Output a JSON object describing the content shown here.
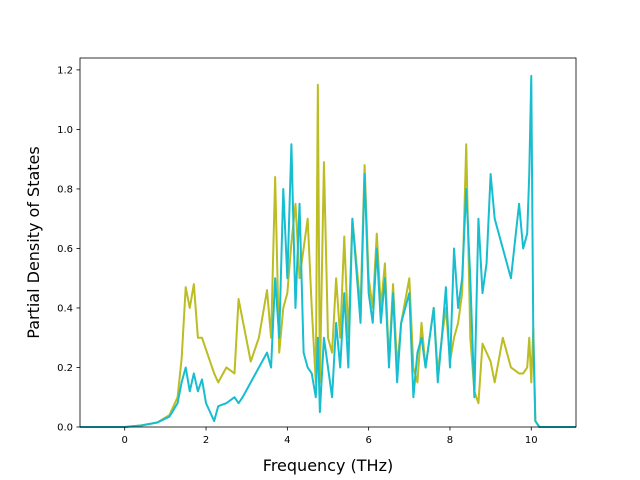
{
  "chart_data": {
    "type": "line",
    "xlabel": "Frequency (THz)",
    "ylabel": "Partial Density of States",
    "xlim": [
      -1.1,
      11.1
    ],
    "ylim": [
      0,
      1.24
    ],
    "grid": false,
    "legend": "none",
    "x_ticks": [
      0,
      2,
      4,
      6,
      8,
      10
    ],
    "x_tick_labels": [
      "0",
      "2",
      "4",
      "6",
      "8",
      "10"
    ],
    "y_ticks": [
      0.0,
      0.2,
      0.4,
      0.6,
      0.8,
      1.0,
      1.2
    ],
    "y_tick_labels": [
      "0.0",
      "0.2",
      "0.4",
      "0.6",
      "0.8",
      "1.0",
      "1.2"
    ],
    "series": [
      {
        "color": "#bcbd22",
        "x": [
          -1.1,
          0.0,
          0.4,
          0.8,
          1.1,
          1.3,
          1.4,
          1.5,
          1.6,
          1.7,
          1.8,
          1.9,
          2.0,
          2.1,
          2.2,
          2.3,
          2.5,
          2.7,
          2.8,
          2.9,
          3.1,
          3.3,
          3.5,
          3.6,
          3.7,
          3.8,
          3.9,
          4.0,
          4.1,
          4.2,
          4.3,
          4.4,
          4.5,
          4.6,
          4.7,
          4.75,
          4.8,
          4.9,
          5.0,
          5.1,
          5.2,
          5.3,
          5.4,
          5.5,
          5.6,
          5.8,
          5.9,
          6.0,
          6.1,
          6.2,
          6.3,
          6.4,
          6.5,
          6.6,
          6.7,
          6.8,
          7.0,
          7.1,
          7.2,
          7.3,
          7.4,
          7.6,
          7.7,
          7.8,
          7.9,
          8.0,
          8.1,
          8.2,
          8.3,
          8.4,
          8.5,
          8.6,
          8.7,
          8.8,
          8.9,
          9.0,
          9.1,
          9.3,
          9.5,
          9.7,
          9.8,
          9.9,
          9.95,
          10.0,
          10.05,
          10.1,
          10.2,
          11.1
        ],
        "y": [
          0.0,
          0.0,
          0.005,
          0.015,
          0.04,
          0.1,
          0.23,
          0.47,
          0.4,
          0.48,
          0.3,
          0.3,
          0.26,
          0.22,
          0.18,
          0.15,
          0.2,
          0.18,
          0.43,
          0.36,
          0.22,
          0.3,
          0.46,
          0.3,
          0.84,
          0.25,
          0.4,
          0.45,
          0.62,
          0.75,
          0.5,
          0.6,
          0.7,
          0.4,
          0.15,
          1.15,
          0.15,
          0.89,
          0.3,
          0.25,
          0.5,
          0.3,
          0.64,
          0.3,
          0.7,
          0.4,
          0.88,
          0.5,
          0.4,
          0.65,
          0.4,
          0.55,
          0.22,
          0.48,
          0.2,
          0.35,
          0.5,
          0.2,
          0.15,
          0.35,
          0.2,
          0.4,
          0.18,
          0.3,
          0.4,
          0.22,
          0.3,
          0.35,
          0.45,
          0.95,
          0.3,
          0.12,
          0.08,
          0.28,
          0.25,
          0.22,
          0.15,
          0.3,
          0.2,
          0.18,
          0.18,
          0.2,
          0.3,
          0.15,
          0.33,
          0.02,
          0.0,
          0.0
        ]
      },
      {
        "color": "#17becf",
        "x": [
          -1.1,
          0.0,
          0.4,
          0.8,
          1.1,
          1.3,
          1.4,
          1.5,
          1.6,
          1.7,
          1.8,
          1.9,
          2.0,
          2.1,
          2.2,
          2.3,
          2.5,
          2.7,
          2.8,
          2.9,
          3.1,
          3.3,
          3.5,
          3.6,
          3.7,
          3.8,
          3.9,
          4.0,
          4.1,
          4.2,
          4.3,
          4.4,
          4.5,
          4.6,
          4.7,
          4.75,
          4.8,
          4.9,
          5.0,
          5.1,
          5.2,
          5.3,
          5.4,
          5.5,
          5.6,
          5.8,
          5.9,
          6.0,
          6.1,
          6.2,
          6.3,
          6.4,
          6.5,
          6.6,
          6.7,
          6.8,
          7.0,
          7.1,
          7.2,
          7.3,
          7.4,
          7.6,
          7.7,
          7.8,
          7.9,
          8.0,
          8.1,
          8.2,
          8.3,
          8.4,
          8.5,
          8.6,
          8.7,
          8.8,
          8.9,
          9.0,
          9.1,
          9.3,
          9.5,
          9.7,
          9.8,
          9.9,
          9.95,
          10.0,
          10.05,
          10.1,
          10.2,
          11.1
        ],
        "y": [
          0.0,
          0.0,
          0.005,
          0.015,
          0.035,
          0.08,
          0.15,
          0.2,
          0.12,
          0.18,
          0.12,
          0.16,
          0.08,
          0.05,
          0.02,
          0.07,
          0.08,
          0.1,
          0.08,
          0.1,
          0.15,
          0.2,
          0.25,
          0.2,
          0.5,
          0.3,
          0.8,
          0.5,
          0.95,
          0.4,
          0.75,
          0.25,
          0.2,
          0.18,
          0.1,
          0.3,
          0.05,
          0.3,
          0.2,
          0.1,
          0.35,
          0.2,
          0.45,
          0.2,
          0.7,
          0.35,
          0.85,
          0.45,
          0.35,
          0.6,
          0.35,
          0.5,
          0.2,
          0.45,
          0.15,
          0.35,
          0.45,
          0.1,
          0.25,
          0.3,
          0.2,
          0.4,
          0.15,
          0.3,
          0.47,
          0.2,
          0.6,
          0.4,
          0.5,
          0.8,
          0.5,
          0.1,
          0.7,
          0.45,
          0.55,
          0.85,
          0.7,
          0.6,
          0.5,
          0.75,
          0.6,
          0.65,
          0.85,
          1.18,
          0.3,
          0.02,
          0.0,
          0.0
        ]
      }
    ]
  }
}
